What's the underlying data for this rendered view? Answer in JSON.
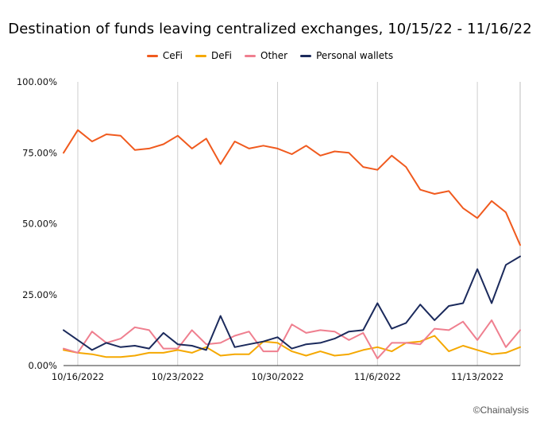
{
  "chart_data": {
    "type": "line",
    "title": "Destination of funds leaving centralized exchanges, 10/15/22 - 11/16/22",
    "y_ticks": [
      "100.00%",
      "75.00%",
      "50.00%",
      "25.00%",
      "0.00%"
    ],
    "ylim": [
      0,
      100
    ],
    "x_ticks": [
      {
        "label": "10/16/2022",
        "index": 1
      },
      {
        "label": "10/23/2022",
        "index": 8
      },
      {
        "label": "10/30/2022",
        "index": 15
      },
      {
        "label": "11/6/2022",
        "index": 22
      },
      {
        "label": "11/13/2022",
        "index": 29
      }
    ],
    "x_count": 33,
    "grid": "vertical-weekly",
    "legend_position": "top",
    "series": [
      {
        "name": "CeFi",
        "color": "#F05A1E",
        "values": [
          75,
          83,
          79,
          81.5,
          81,
          76,
          76.5,
          78,
          81,
          76.5,
          80,
          71,
          79,
          76.5,
          77.5,
          76.5,
          74.5,
          77.5,
          74,
          75.5,
          75,
          70,
          69,
          74,
          70,
          62,
          60.5,
          61.5,
          55.5,
          52,
          58,
          54,
          42.5
        ]
      },
      {
        "name": "DeFi",
        "color": "#F5A800",
        "values": [
          5.5,
          4.5,
          4,
          3,
          3,
          3.5,
          4.5,
          4.5,
          5.5,
          4.5,
          6.5,
          3.5,
          4,
          4,
          8.5,
          8,
          5,
          3.5,
          5,
          3.5,
          4,
          5.5,
          6.5,
          5,
          8,
          8.5,
          10.5,
          5,
          7,
          5.5,
          4,
          4.5,
          6.5
        ]
      },
      {
        "name": "Other",
        "color": "#EF7F8F",
        "values": [
          6,
          4.5,
          12,
          8,
          9.5,
          13.5,
          12.5,
          6,
          6,
          12.5,
          7.5,
          8,
          10.5,
          12,
          5,
          5,
          14.5,
          11.5,
          12.5,
          12,
          9,
          11.5,
          2.5,
          8,
          8,
          7.5,
          13,
          12.5,
          15.5,
          9,
          16,
          6.5,
          12.5
        ]
      },
      {
        "name": "Personal wallets",
        "color": "#1B2A5C",
        "values": [
          12.5,
          9,
          5.5,
          8,
          6.5,
          7,
          6,
          11.5,
          7.5,
          7,
          5.5,
          17.5,
          6.5,
          7.5,
          8.5,
          10,
          6,
          7.5,
          8,
          9.5,
          12,
          12.5,
          22,
          13,
          15,
          21.5,
          16,
          21,
          22,
          34,
          22,
          35.5,
          38.5
        ]
      }
    ]
  },
  "credit": "©Chainalysis"
}
